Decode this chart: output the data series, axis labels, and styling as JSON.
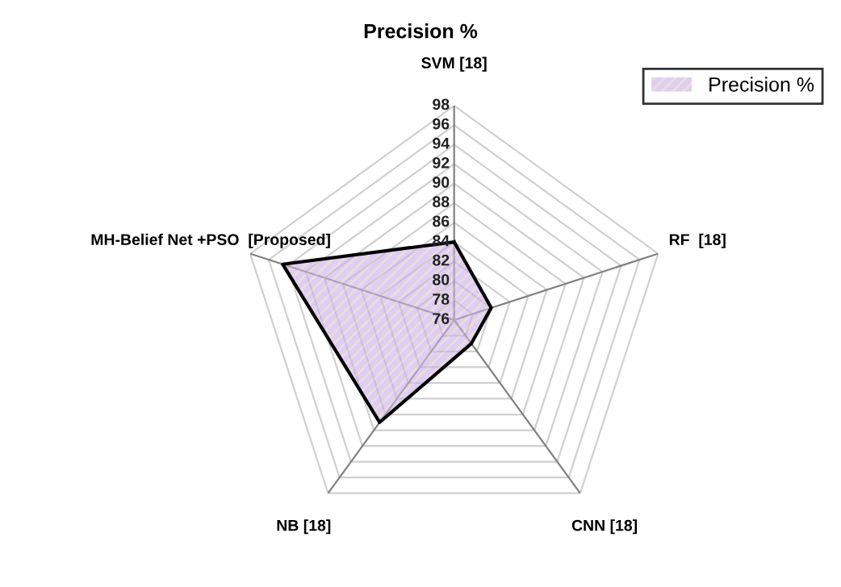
{
  "chart_data": {
    "type": "radar",
    "title": "Precision %",
    "categories": [
      "SVM [18]",
      "RF  [18]",
      "CNN [18]",
      "NB [18]",
      "MH-Belief Net +PSO  [Proposed]"
    ],
    "series": [
      {
        "name": "Precision %",
        "color": "#c9aee8",
        "values": [
          84,
          80,
          79,
          89,
          94.5
        ]
      }
    ],
    "ylim": [
      76,
      98
    ],
    "yticks": [
      76,
      78,
      80,
      82,
      84,
      86,
      88,
      90,
      92,
      94,
      96,
      98
    ],
    "grid": true,
    "legend": "top right"
  }
}
